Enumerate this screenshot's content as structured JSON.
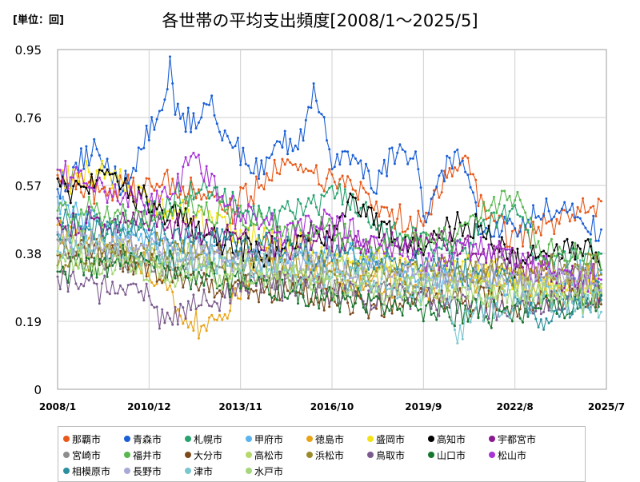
{
  "unit_label": "[単位：回]",
  "chart_data": {
    "type": "line",
    "title": "各世帯の平均支出頻度[2008/1～2025/5]",
    "xlabel": "",
    "ylabel": "",
    "y_ticks": [
      "0",
      "0.19",
      "0.38",
      "0.57",
      "0.76",
      "0.95"
    ],
    "ylim": [
      0,
      0.95
    ],
    "x_ticks": [
      "2008/1",
      "2010/12",
      "2013/11",
      "2016/10",
      "2019/9",
      "2022/8",
      "2025/7"
    ],
    "x_tick_values": [
      "2008-01",
      "2010-12",
      "2013-11",
      "2016-10",
      "2019-09",
      "2022-08",
      "2025-07"
    ],
    "x_start": "2008-01",
    "x_end": "2025-05",
    "x_axis_end": "2025-07",
    "interval": "monthly",
    "grid": true,
    "legend_position": "bottom",
    "series": [
      {
        "name": "那覇市",
        "color": "#e8591a",
        "control_points": [
          [
            "2008-01",
            0.6
          ],
          [
            "2009-06",
            0.55
          ],
          [
            "2011-06",
            0.58
          ],
          [
            "2013-06",
            0.5
          ],
          [
            "2014-09",
            0.59
          ],
          [
            "2015-06",
            0.65
          ],
          [
            "2016-06",
            0.6
          ],
          [
            "2017-06",
            0.58
          ],
          [
            "2018-06",
            0.5
          ],
          [
            "2019-06",
            0.45
          ],
          [
            "2020-03",
            0.56
          ],
          [
            "2021-01",
            0.65
          ],
          [
            "2021-09",
            0.5
          ],
          [
            "2022-06",
            0.42
          ],
          [
            "2023-06",
            0.45
          ],
          [
            "2024-06",
            0.5
          ],
          [
            "2025-05",
            0.52
          ]
        ]
      },
      {
        "name": "青森市",
        "color": "#1a5fd6",
        "control_points": [
          [
            "2008-01",
            0.55
          ],
          [
            "2008-10",
            0.63
          ],
          [
            "2009-04",
            0.68
          ],
          [
            "2010-01",
            0.55
          ],
          [
            "2010-12",
            0.72
          ],
          [
            "2011-06",
            0.84
          ],
          [
            "2011-08",
            0.91
          ],
          [
            "2011-10",
            0.76
          ],
          [
            "2012-06",
            0.76
          ],
          [
            "2012-12",
            0.8
          ],
          [
            "2013-04",
            0.7
          ],
          [
            "2013-11",
            0.66
          ],
          [
            "2014-06",
            0.6
          ],
          [
            "2015-03",
            0.7
          ],
          [
            "2015-09",
            0.7
          ],
          [
            "2016-03",
            0.82
          ],
          [
            "2016-06",
            0.78
          ],
          [
            "2016-10",
            0.64
          ],
          [
            "2017-06",
            0.66
          ],
          [
            "2018-03",
            0.58
          ],
          [
            "2018-09",
            0.65
          ],
          [
            "2019-05",
            0.68
          ],
          [
            "2019-09",
            0.48
          ],
          [
            "2020-06",
            0.62
          ],
          [
            "2020-12",
            0.66
          ],
          [
            "2021-06",
            0.46
          ],
          [
            "2022-08",
            0.44
          ],
          [
            "2023-06",
            0.5
          ],
          [
            "2024-06",
            0.48
          ],
          [
            "2025-05",
            0.44
          ]
        ]
      },
      {
        "name": "札幌市",
        "color": "#27a36e",
        "control_points": [
          [
            "2008-01",
            0.48
          ],
          [
            "2009-06",
            0.45
          ],
          [
            "2011-06",
            0.5
          ],
          [
            "2012-06",
            0.58
          ],
          [
            "2013-06",
            0.52
          ],
          [
            "2015-01",
            0.48
          ],
          [
            "2016-10",
            0.55
          ],
          [
            "2018-06",
            0.45
          ],
          [
            "2019-09",
            0.42
          ],
          [
            "2021-01",
            0.4
          ],
          [
            "2022-08",
            0.52
          ],
          [
            "2023-06",
            0.35
          ],
          [
            "2025-05",
            0.38
          ]
        ]
      },
      {
        "name": "甲府市",
        "color": "#5ab3ee",
        "control_points": [
          [
            "2008-01",
            0.52
          ],
          [
            "2010-06",
            0.42
          ],
          [
            "2012-06",
            0.4
          ],
          [
            "2014-06",
            0.36
          ],
          [
            "2016-06",
            0.38
          ],
          [
            "2018-06",
            0.36
          ],
          [
            "2019-09",
            0.32
          ],
          [
            "2021-06",
            0.3
          ],
          [
            "2023-06",
            0.3
          ],
          [
            "2025-05",
            0.32
          ]
        ]
      },
      {
        "name": "徳島市",
        "color": "#e8a317",
        "control_points": [
          [
            "2008-01",
            0.45
          ],
          [
            "2009-06",
            0.42
          ],
          [
            "2011-06",
            0.3
          ],
          [
            "2012-01",
            0.2
          ],
          [
            "2012-10",
            0.18
          ],
          [
            "2013-06",
            0.22
          ],
          [
            "2014-06",
            0.36
          ],
          [
            "2016-06",
            0.32
          ],
          [
            "2018-06",
            0.3
          ],
          [
            "2019-09",
            0.28
          ],
          [
            "2021-06",
            0.3
          ],
          [
            "2023-06",
            0.28
          ],
          [
            "2025-05",
            0.3
          ]
        ]
      },
      {
        "name": "盛岡市",
        "color": "#f2e21a",
        "control_points": [
          [
            "2008-01",
            0.58
          ],
          [
            "2009-06",
            0.6
          ],
          [
            "2011-06",
            0.5
          ],
          [
            "2013-06",
            0.45
          ],
          [
            "2015-06",
            0.4
          ],
          [
            "2017-06",
            0.36
          ],
          [
            "2019-06",
            0.34
          ],
          [
            "2021-06",
            0.34
          ],
          [
            "2023-06",
            0.3
          ],
          [
            "2025-05",
            0.28
          ]
        ]
      },
      {
        "name": "高知市",
        "color": "#000000",
        "control_points": [
          [
            "2008-01",
            0.55
          ],
          [
            "2009-06",
            0.6
          ],
          [
            "2011-01",
            0.52
          ],
          [
            "2012-06",
            0.45
          ],
          [
            "2014-06",
            0.38
          ],
          [
            "2016-10",
            0.44
          ],
          [
            "2017-06",
            0.52
          ],
          [
            "2018-06",
            0.45
          ],
          [
            "2019-09",
            0.38
          ],
          [
            "2020-06",
            0.44
          ],
          [
            "2021-06",
            0.46
          ],
          [
            "2022-08",
            0.36
          ],
          [
            "2024-06",
            0.4
          ],
          [
            "2025-05",
            0.36
          ]
        ]
      },
      {
        "name": "宇都宮市",
        "color": "#8b1a8f",
        "control_points": [
          [
            "2008-01",
            0.45
          ],
          [
            "2010-06",
            0.48
          ],
          [
            "2012-06",
            0.44
          ],
          [
            "2014-06",
            0.4
          ],
          [
            "2016-06",
            0.42
          ],
          [
            "2018-06",
            0.4
          ],
          [
            "2020-06",
            0.42
          ],
          [
            "2022-06",
            0.36
          ],
          [
            "2025-05",
            0.28
          ]
        ]
      },
      {
        "name": "宮崎市",
        "color": "#8d8d8d",
        "control_points": [
          [
            "2008-01",
            0.4
          ],
          [
            "2010-06",
            0.36
          ],
          [
            "2012-06",
            0.34
          ],
          [
            "2014-06",
            0.32
          ],
          [
            "2016-06",
            0.3
          ],
          [
            "2018-06",
            0.28
          ],
          [
            "2020-06",
            0.3
          ],
          [
            "2022-06",
            0.34
          ],
          [
            "2025-05",
            0.32
          ]
        ]
      },
      {
        "name": "福井市",
        "color": "#58b84e",
        "control_points": [
          [
            "2008-01",
            0.5
          ],
          [
            "2010-06",
            0.48
          ],
          [
            "2012-06",
            0.52
          ],
          [
            "2014-06",
            0.46
          ],
          [
            "2016-06",
            0.44
          ],
          [
            "2018-06",
            0.4
          ],
          [
            "2020-06",
            0.42
          ],
          [
            "2022-08",
            0.56
          ],
          [
            "2023-06",
            0.4
          ],
          [
            "2025-05",
            0.36
          ]
        ]
      },
      {
        "name": "大分市",
        "color": "#7a4a1c",
        "control_points": [
          [
            "2008-01",
            0.38
          ],
          [
            "2010-06",
            0.36
          ],
          [
            "2012-06",
            0.3
          ],
          [
            "2014-06",
            0.28
          ],
          [
            "2016-06",
            0.26
          ],
          [
            "2018-06",
            0.24
          ],
          [
            "2020-06",
            0.26
          ],
          [
            "2022-06",
            0.24
          ],
          [
            "2025-05",
            0.26
          ]
        ]
      },
      {
        "name": "高松市",
        "color": "#b5d96b",
        "control_points": [
          [
            "2008-01",
            0.42
          ],
          [
            "2010-06",
            0.38
          ],
          [
            "2012-06",
            0.36
          ],
          [
            "2014-06",
            0.34
          ],
          [
            "2016-06",
            0.34
          ],
          [
            "2018-06",
            0.32
          ],
          [
            "2020-06",
            0.3
          ],
          [
            "2022-06",
            0.28
          ],
          [
            "2025-05",
            0.3
          ]
        ]
      },
      {
        "name": "浜松市",
        "color": "#9a8b2a",
        "control_points": [
          [
            "2008-01",
            0.36
          ],
          [
            "2010-06",
            0.4
          ],
          [
            "2012-06",
            0.38
          ],
          [
            "2014-06",
            0.36
          ],
          [
            "2016-06",
            0.34
          ],
          [
            "2018-06",
            0.32
          ],
          [
            "2020-06",
            0.34
          ],
          [
            "2022-06",
            0.32
          ],
          [
            "2025-05",
            0.34
          ]
        ]
      },
      {
        "name": "鳥取市",
        "color": "#7b5b8e",
        "control_points": [
          [
            "2008-01",
            0.32
          ],
          [
            "2009-06",
            0.28
          ],
          [
            "2010-06",
            0.3
          ],
          [
            "2011-06",
            0.2
          ],
          [
            "2012-06",
            0.24
          ],
          [
            "2014-06",
            0.3
          ],
          [
            "2016-06",
            0.28
          ],
          [
            "2018-06",
            0.26
          ],
          [
            "2020-06",
            0.24
          ],
          [
            "2022-06",
            0.22
          ],
          [
            "2025-05",
            0.26
          ]
        ]
      },
      {
        "name": "山口市",
        "color": "#16762e",
        "control_points": [
          [
            "2008-01",
            0.34
          ],
          [
            "2010-06",
            0.36
          ],
          [
            "2012-06",
            0.32
          ],
          [
            "2014-06",
            0.28
          ],
          [
            "2016-06",
            0.26
          ],
          [
            "2018-06",
            0.24
          ],
          [
            "2020-06",
            0.22
          ],
          [
            "2022-06",
            0.22
          ],
          [
            "2025-05",
            0.24
          ]
        ]
      },
      {
        "name": "松山市",
        "color": "#a833d6",
        "control_points": [
          [
            "2008-01",
            0.62
          ],
          [
            "2009-06",
            0.56
          ],
          [
            "2011-06",
            0.52
          ],
          [
            "2012-06",
            0.66
          ],
          [
            "2013-06",
            0.5
          ],
          [
            "2015-06",
            0.44
          ],
          [
            "2016-06",
            0.48
          ],
          [
            "2018-06",
            0.4
          ],
          [
            "2019-09",
            0.36
          ],
          [
            "2021-06",
            0.4
          ],
          [
            "2022-06",
            0.36
          ],
          [
            "2024-06",
            0.32
          ],
          [
            "2025-05",
            0.3
          ]
        ]
      },
      {
        "name": "相模原市",
        "color": "#2b8f9e",
        "control_points": [
          [
            "2008-01",
            0.46
          ],
          [
            "2010-06",
            0.44
          ],
          [
            "2012-06",
            0.42
          ],
          [
            "2014-06",
            0.4
          ],
          [
            "2016-06",
            0.38
          ],
          [
            "2018-06",
            0.36
          ],
          [
            "2020-06",
            0.34
          ],
          [
            "2022-06",
            0.3
          ],
          [
            "2023-06",
            0.18
          ],
          [
            "2025-05",
            0.28
          ]
        ]
      },
      {
        "name": "長野市",
        "color": "#a9a9d8",
        "control_points": [
          [
            "2008-01",
            0.42
          ],
          [
            "2010-06",
            0.4
          ],
          [
            "2012-06",
            0.38
          ],
          [
            "2014-06",
            0.36
          ],
          [
            "2016-06",
            0.36
          ],
          [
            "2018-06",
            0.34
          ],
          [
            "2020-06",
            0.32
          ],
          [
            "2022-06",
            0.3
          ],
          [
            "2025-05",
            0.3
          ]
        ]
      },
      {
        "name": "津市",
        "color": "#79c7d1",
        "control_points": [
          [
            "2008-01",
            0.4
          ],
          [
            "2010-06",
            0.38
          ],
          [
            "2012-06",
            0.36
          ],
          [
            "2014-06",
            0.34
          ],
          [
            "2016-06",
            0.32
          ],
          [
            "2018-06",
            0.3
          ],
          [
            "2020-06",
            0.26
          ],
          [
            "2020-09",
            0.16
          ],
          [
            "2021-06",
            0.22
          ],
          [
            "2023-06",
            0.26
          ],
          [
            "2025-05",
            0.24
          ]
        ]
      },
      {
        "name": "水戸市",
        "color": "#a6d67a",
        "control_points": [
          [
            "2008-01",
            0.36
          ],
          [
            "2010-06",
            0.34
          ],
          [
            "2012-06",
            0.32
          ],
          [
            "2014-06",
            0.32
          ],
          [
            "2016-06",
            0.3
          ],
          [
            "2018-06",
            0.28
          ],
          [
            "2020-06",
            0.28
          ],
          [
            "2022-06",
            0.26
          ],
          [
            "2025-05",
            0.26
          ]
        ]
      }
    ]
  }
}
